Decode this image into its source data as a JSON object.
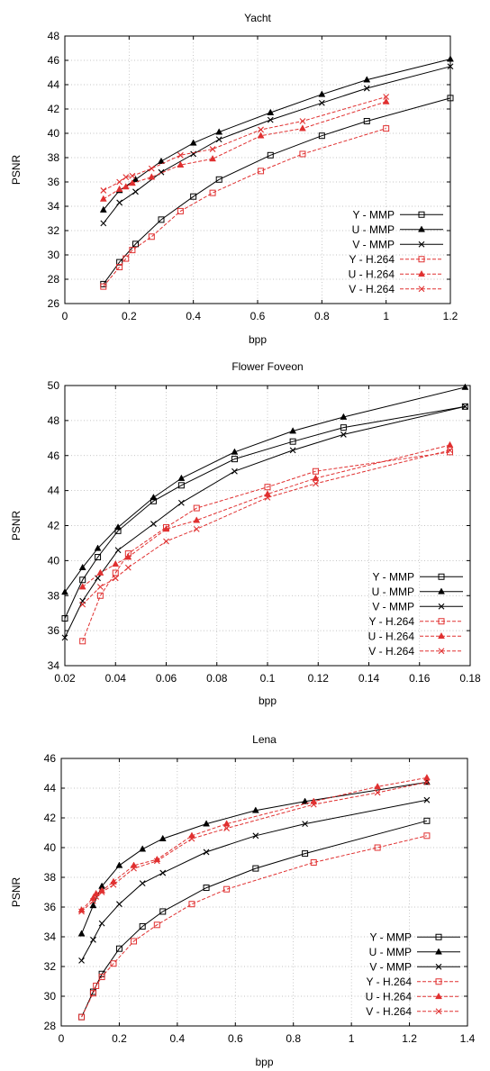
{
  "colors": {
    "mmp": "#000000",
    "h264": "#e03030"
  },
  "chart_data": [
    {
      "type": "line",
      "title": "Yacht",
      "xlabel": "bpp",
      "ylabel": "PSNR",
      "xlim": [
        0,
        1.2
      ],
      "ylim": [
        26,
        48
      ],
      "xticks": [
        0,
        0.2,
        0.4,
        0.6,
        0.8,
        1,
        1.2
      ],
      "yticks": [
        26,
        28,
        30,
        32,
        34,
        36,
        38,
        40,
        42,
        44,
        46,
        48
      ],
      "grid": true,
      "legend": "bottom-right",
      "series": [
        {
          "name": "Y - MMP",
          "marker": "square",
          "dash": false,
          "color": "mmp",
          "x": [
            0.12,
            0.17,
            0.22,
            0.3,
            0.4,
            0.48,
            0.64,
            0.8,
            0.94,
            1.2
          ],
          "y": [
            27.6,
            29.4,
            30.9,
            32.9,
            34.8,
            36.2,
            38.2,
            39.8,
            41.0,
            42.9
          ]
        },
        {
          "name": "U - MMP",
          "marker": "triangle",
          "dash": false,
          "color": "mmp",
          "x": [
            0.12,
            0.17,
            0.22,
            0.3,
            0.4,
            0.48,
            0.64,
            0.8,
            0.94,
            1.2
          ],
          "y": [
            33.7,
            35.3,
            36.2,
            37.7,
            39.2,
            40.1,
            41.7,
            43.2,
            44.4,
            46.1
          ]
        },
        {
          "name": "V - MMP",
          "marker": "x",
          "dash": false,
          "color": "mmp",
          "x": [
            0.12,
            0.17,
            0.22,
            0.3,
            0.4,
            0.48,
            0.64,
            0.8,
            0.94,
            1.2
          ],
          "y": [
            32.6,
            34.3,
            35.2,
            36.8,
            38.3,
            39.5,
            41.1,
            42.5,
            43.7,
            45.5
          ]
        },
        {
          "name": "Y - H.264",
          "marker": "square",
          "dash": true,
          "color": "h264",
          "x": [
            0.12,
            0.17,
            0.19,
            0.21,
            0.27,
            0.36,
            0.46,
            0.61,
            0.74,
            1.0
          ],
          "y": [
            27.4,
            29.0,
            29.7,
            30.4,
            31.5,
            33.6,
            35.1,
            36.9,
            38.3,
            40.4
          ]
        },
        {
          "name": "U - H.264",
          "marker": "triangle",
          "dash": true,
          "color": "h264",
          "x": [
            0.12,
            0.17,
            0.19,
            0.21,
            0.27,
            0.36,
            0.46,
            0.61,
            0.74,
            1.0
          ],
          "y": [
            34.6,
            35.4,
            35.6,
            35.9,
            36.4,
            37.4,
            37.9,
            39.8,
            40.4,
            42.6
          ]
        },
        {
          "name": "V - H.264",
          "marker": "x",
          "dash": true,
          "color": "h264",
          "x": [
            0.12,
            0.17,
            0.19,
            0.21,
            0.27,
            0.36,
            0.46,
            0.61,
            0.74,
            1.0
          ],
          "y": [
            35.3,
            36.0,
            36.4,
            36.5,
            37.1,
            38.2,
            38.7,
            40.3,
            41.0,
            43.0
          ]
        }
      ]
    },
    {
      "type": "line",
      "title": "Flower Foveon",
      "xlabel": "bpp",
      "ylabel": "PSNR",
      "xlim": [
        0.02,
        0.18
      ],
      "ylim": [
        34,
        50
      ],
      "xticks": [
        0.02,
        0.04,
        0.06,
        0.08,
        0.1,
        0.12,
        0.14,
        0.16,
        0.18
      ],
      "yticks": [
        34,
        36,
        38,
        40,
        42,
        44,
        46,
        48,
        50
      ],
      "grid": true,
      "legend": "bottom-right",
      "series": [
        {
          "name": "Y - MMP",
          "marker": "square",
          "dash": false,
          "color": "mmp",
          "x": [
            0.02,
            0.027,
            0.033,
            0.041,
            0.055,
            0.066,
            0.087,
            0.11,
            0.13,
            0.178
          ],
          "y": [
            36.7,
            38.9,
            40.2,
            41.7,
            43.4,
            44.3,
            45.8,
            46.8,
            47.6,
            48.8
          ]
        },
        {
          "name": "U - MMP",
          "marker": "triangle",
          "dash": false,
          "color": "mmp",
          "x": [
            0.02,
            0.027,
            0.033,
            0.041,
            0.055,
            0.066,
            0.087,
            0.11,
            0.13,
            0.178
          ],
          "y": [
            38.2,
            39.6,
            40.7,
            41.9,
            43.6,
            44.7,
            46.2,
            47.4,
            48.2,
            49.9
          ]
        },
        {
          "name": "V - MMP",
          "marker": "x",
          "dash": false,
          "color": "mmp",
          "x": [
            0.02,
            0.027,
            0.033,
            0.041,
            0.055,
            0.066,
            0.087,
            0.11,
            0.13,
            0.178
          ],
          "y": [
            35.6,
            37.7,
            39.0,
            40.6,
            42.1,
            43.3,
            45.1,
            46.3,
            47.2,
            48.8
          ]
        },
        {
          "name": "Y - H.264",
          "marker": "square",
          "dash": true,
          "color": "h264",
          "x": [
            0.027,
            0.034,
            0.04,
            0.045,
            0.06,
            0.072,
            0.1,
            0.119,
            0.172
          ],
          "y": [
            35.4,
            38.0,
            39.3,
            40.4,
            41.9,
            43.0,
            44.2,
            45.1,
            46.2
          ]
        },
        {
          "name": "U - H.264",
          "marker": "triangle",
          "dash": true,
          "color": "h264",
          "x": [
            0.027,
            0.034,
            0.04,
            0.045,
            0.06,
            0.072,
            0.1,
            0.119,
            0.172
          ],
          "y": [
            38.5,
            39.3,
            39.8,
            40.2,
            41.8,
            42.3,
            43.8,
            44.7,
            46.6
          ]
        },
        {
          "name": "V - H.264",
          "marker": "x",
          "dash": true,
          "color": "h264",
          "x": [
            0.027,
            0.034,
            0.04,
            0.045,
            0.06,
            0.072,
            0.1,
            0.119,
            0.172
          ],
          "y": [
            37.5,
            38.5,
            39.0,
            39.6,
            41.1,
            41.8,
            43.6,
            44.4,
            46.3
          ]
        }
      ]
    },
    {
      "type": "line",
      "title": "Lena",
      "xlabel": "bpp",
      "ylabel": "PSNR",
      "xlim": [
        0,
        1.4
      ],
      "ylim": [
        28,
        46
      ],
      "xticks": [
        0,
        0.2,
        0.4,
        0.6,
        0.8,
        1,
        1.2,
        1.4
      ],
      "yticks": [
        28,
        30,
        32,
        34,
        36,
        38,
        40,
        42,
        44,
        46
      ],
      "grid": true,
      "legend": "bottom-right",
      "series": [
        {
          "name": "Y - MMP",
          "marker": "square",
          "dash": false,
          "color": "mmp",
          "x": [
            0.07,
            0.11,
            0.14,
            0.2,
            0.28,
            0.35,
            0.5,
            0.67,
            0.84,
            1.26
          ],
          "y": [
            28.6,
            30.3,
            31.5,
            33.2,
            34.7,
            35.7,
            37.3,
            38.6,
            39.6,
            41.8
          ]
        },
        {
          "name": "U - MMP",
          "marker": "triangle",
          "dash": false,
          "color": "mmp",
          "x": [
            0.07,
            0.11,
            0.14,
            0.2,
            0.28,
            0.35,
            0.5,
            0.67,
            0.84,
            1.26
          ],
          "y": [
            34.2,
            36.1,
            37.4,
            38.8,
            39.9,
            40.6,
            41.6,
            42.5,
            43.1,
            44.4
          ]
        },
        {
          "name": "V - MMP",
          "marker": "x",
          "dash": false,
          "color": "mmp",
          "x": [
            0.07,
            0.11,
            0.14,
            0.2,
            0.28,
            0.35,
            0.5,
            0.67,
            0.84,
            1.26
          ],
          "y": [
            32.4,
            33.8,
            34.9,
            36.2,
            37.6,
            38.3,
            39.7,
            40.8,
            41.6,
            43.2
          ]
        },
        {
          "name": "Y - H.264",
          "marker": "square",
          "dash": true,
          "color": "h264",
          "x": [
            0.07,
            0.11,
            0.12,
            0.14,
            0.18,
            0.25,
            0.33,
            0.45,
            0.57,
            0.87,
            1.09,
            1.26
          ],
          "y": [
            28.6,
            30.2,
            30.7,
            31.3,
            32.2,
            33.7,
            34.8,
            36.2,
            37.2,
            39.0,
            40.0,
            40.8
          ]
        },
        {
          "name": "U - H.264",
          "marker": "triangle",
          "dash": true,
          "color": "h264",
          "x": [
            0.07,
            0.11,
            0.12,
            0.14,
            0.18,
            0.25,
            0.33,
            0.45,
            0.57,
            0.87,
            1.09,
            1.26
          ],
          "y": [
            35.8,
            36.6,
            36.9,
            37.1,
            37.7,
            38.8,
            39.2,
            40.8,
            41.6,
            43.1,
            44.1,
            44.7
          ]
        },
        {
          "name": "V - H.264",
          "marker": "x",
          "dash": true,
          "color": "h264",
          "x": [
            0.07,
            0.11,
            0.12,
            0.14,
            0.18,
            0.25,
            0.33,
            0.45,
            0.57,
            0.87,
            1.09,
            1.26
          ],
          "y": [
            35.7,
            36.4,
            36.7,
            37.0,
            37.5,
            38.6,
            39.1,
            40.6,
            41.3,
            42.9,
            43.7,
            44.4
          ]
        }
      ]
    }
  ]
}
